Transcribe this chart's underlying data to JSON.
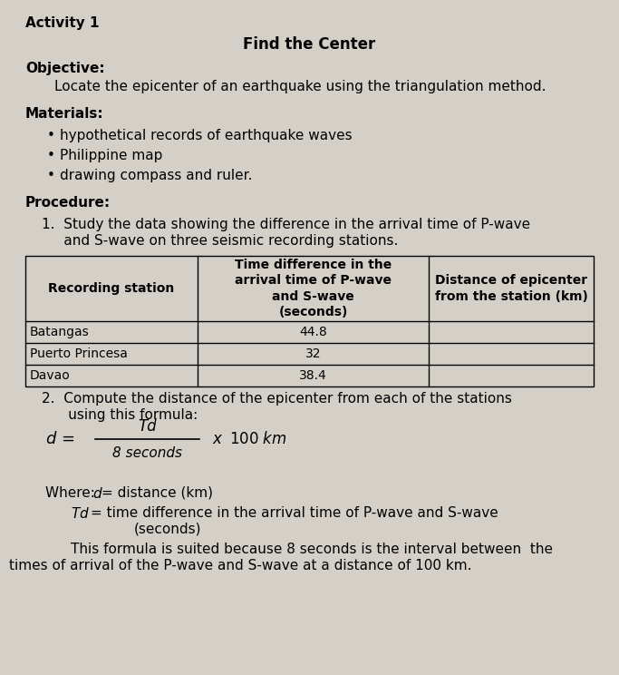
{
  "bg_color": "#d4d0c8",
  "title_activity": "Activity 1",
  "title_center": "Find the Center",
  "objective_label": "Objective:",
  "objective_text": "Locate the epicenter of an earthquake using the triangulation method.",
  "materials_label": "Materials:",
  "materials_items": [
    "hypothetical records of earthquake waves",
    "Philippine map",
    "drawing compass and ruler."
  ],
  "procedure_label": "Procedure:",
  "step1_line1": "1.  Study the data showing the difference in the arrival time of P-wave",
  "step1_line2": "     and S-wave on three seismic recording stations.",
  "table_col0_header": "Recording station",
  "table_col1_header": "Time difference in the\narrival time of P-wave\nand S-wave\n(seconds)",
  "table_col2_header": "Distance of epicenter\nfrom the station (km)",
  "table_rows": [
    [
      "Batangas",
      "44.8",
      ""
    ],
    [
      "Puerto Princesa",
      "32",
      ""
    ],
    [
      "Davao",
      "38.4",
      ""
    ]
  ],
  "step2_line1": "2.  Compute the distance of the epicenter from each of the stations",
  "step2_line2": "      using this formula:",
  "formula_lhs": "d =",
  "formula_num": "Td",
  "formula_den": "8 seconds",
  "formula_rhs": "x  100 km",
  "where1": "Where: d = distance (km)",
  "where2": "          Td = time difference in the arrival time of P-wave and S-wave",
  "where3": "                    (seconds)",
  "suited1": "          This formula is suited because 8 seconds is the interval between  the",
  "suited2": "times of arrival of the P-wave and S-wave at a distance of 100 km."
}
